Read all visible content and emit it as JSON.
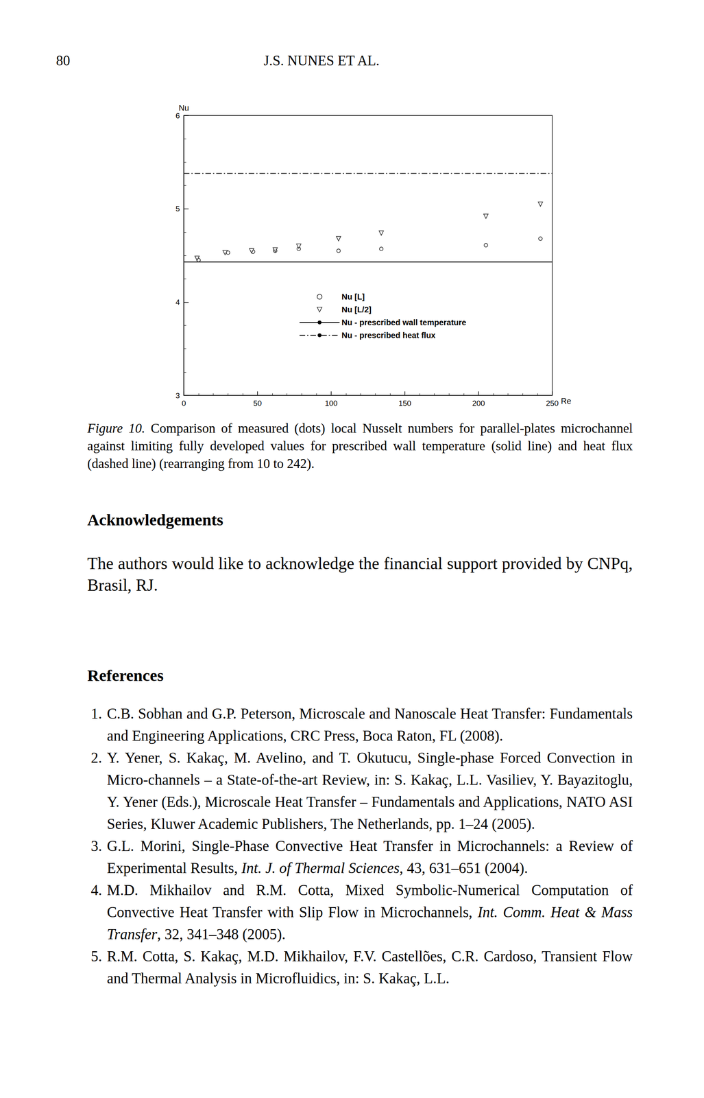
{
  "header": {
    "page_number": "80",
    "running_title": "J.S. NUNES ET AL."
  },
  "chart_data": {
    "type": "scatter",
    "x_label": "Re",
    "y_label": "Nu",
    "xlim": [
      0,
      250
    ],
    "xticks": [
      0,
      50,
      100,
      150,
      200,
      250
    ],
    "ylim": [
      3,
      6
    ],
    "yticks": [
      3,
      4,
      5,
      6
    ],
    "grid": false,
    "legend": "bottom",
    "series": [
      {
        "name": "Nu [L]",
        "type": "scatter",
        "marker": "circle",
        "color": "#000000",
        "x": [
          10,
          30,
          47,
          62,
          78,
          105,
          134,
          205,
          242
        ],
        "values": [
          4.45,
          4.53,
          4.54,
          4.55,
          4.57,
          4.55,
          4.57,
          4.61,
          4.68
        ]
      },
      {
        "name": "Nu [L/2]",
        "type": "scatter",
        "marker": "triangle-down",
        "color": "#000000",
        "x": [
          9,
          28,
          46,
          62,
          78,
          105,
          134,
          205,
          242
        ],
        "values": [
          4.47,
          4.53,
          4.55,
          4.56,
          4.6,
          4.68,
          4.74,
          4.92,
          5.05
        ]
      },
      {
        "name": "Nu - prescribed wall temperature",
        "type": "line",
        "line_style": "solid",
        "color": "#000000",
        "x": [
          0,
          250
        ],
        "values": [
          4.43,
          4.43
        ]
      },
      {
        "name": "Nu - prescribed heat flux",
        "type": "line",
        "line_style": "dashdot",
        "color": "#000000",
        "x": [
          0,
          250
        ],
        "values": [
          5.38,
          5.38
        ]
      }
    ]
  },
  "caption": {
    "label": "Figure 10.",
    "text": "Comparison of measured (dots) local Nusselt numbers for parallel-plates microchannel against limiting fully developed values for prescribed wall temperature (solid line) and heat flux (dashed line) (rearranging from 10 to 242)."
  },
  "acknowledgements": {
    "heading": "Acknowledgements",
    "text": "The authors would like to acknowledge the financial support provided by CNPq, Brasil, RJ."
  },
  "references": {
    "heading": "References",
    "items": [
      {
        "number": "1.",
        "segments": [
          {
            "text": "C.B. Sobhan and G.P. Peterson, Microscale and Nanoscale Heat Transfer: Fundamentals and Engineering Applications, CRC Press, Boca Raton, FL (2008)."
          }
        ]
      },
      {
        "number": "2.",
        "segments": [
          {
            "text": "Y. Yener, S. Kakaç, M. Avelino, and T. Okutucu, Single-phase Forced Convection in Micro-channels – a State-of-the-art Review, in: S. Kakaç, L.L. Vasiliev, Y. Bayazitoglu, Y. Yener (Eds.), Microscale Heat Transfer – Fundamentals and Applications, NATO ASI Series, Kluwer Academic Publishers, The Netherlands, pp. 1–24 (2005)."
          }
        ]
      },
      {
        "number": "3.",
        "segments": [
          {
            "text": "G.L. Morini, Single-Phase Convective Heat Transfer in Microchannels: a Review of Experimental Results, "
          },
          {
            "text": "Int. J. of Thermal Sciences",
            "italic": true
          },
          {
            "text": ", 43, 631–651 (2004)."
          }
        ]
      },
      {
        "number": "4.",
        "segments": [
          {
            "text": "M.D. Mikhailov and R.M. Cotta, Mixed Symbolic-Numerical Computation of Convective Heat Transfer with Slip Flow in Microchannels, "
          },
          {
            "text": "Int. Comm. Heat & Mass Transfer",
            "italic": true
          },
          {
            "text": ", 32, 341–348 (2005)."
          }
        ]
      },
      {
        "number": "5.",
        "segments": [
          {
            "text": "R.M. Cotta, S. Kakaç, M.D. Mikhailov, F.V. Castellões, C.R. Cardoso, Transient Flow and Thermal Analysis in Microfluidics, in: S. Kakaç, L.L."
          }
        ]
      }
    ]
  }
}
